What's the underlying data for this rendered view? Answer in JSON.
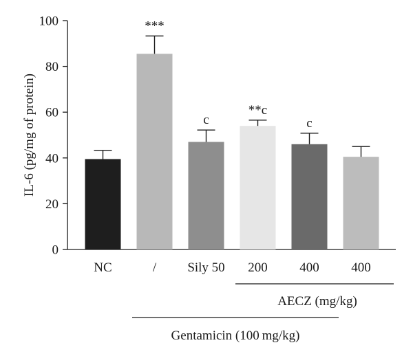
{
  "chart_data": {
    "type": "bar",
    "ylabel": "IL-6 (pg/mg of protein)",
    "ylim": [
      0,
      100
    ],
    "yticks": [
      0,
      20,
      40,
      60,
      80,
      100
    ],
    "categories": [
      "NC",
      "/",
      "Sily 50",
      "200",
      "400",
      "400"
    ],
    "values": [
      39.5,
      85.5,
      47.0,
      54.0,
      46.0,
      40.5
    ],
    "errors": [
      3.8,
      7.8,
      5.2,
      2.5,
      4.8,
      4.5
    ],
    "colors": [
      "#1e1e1e",
      "#b8b8b8",
      "#8e8e8e",
      "#e6e6e6",
      "#6a6a6a",
      "#bcbcbc"
    ],
    "annotations": [
      "",
      "***",
      "c",
      "**c",
      "c",
      ""
    ],
    "groups": [
      {
        "label": "AECZ (mg/kg)",
        "from": 3,
        "to": 5
      },
      {
        "label": "Gentamicin (100 mg/kg)",
        "from": 1,
        "to": 5
      }
    ],
    "grid": false,
    "legend": "none"
  }
}
